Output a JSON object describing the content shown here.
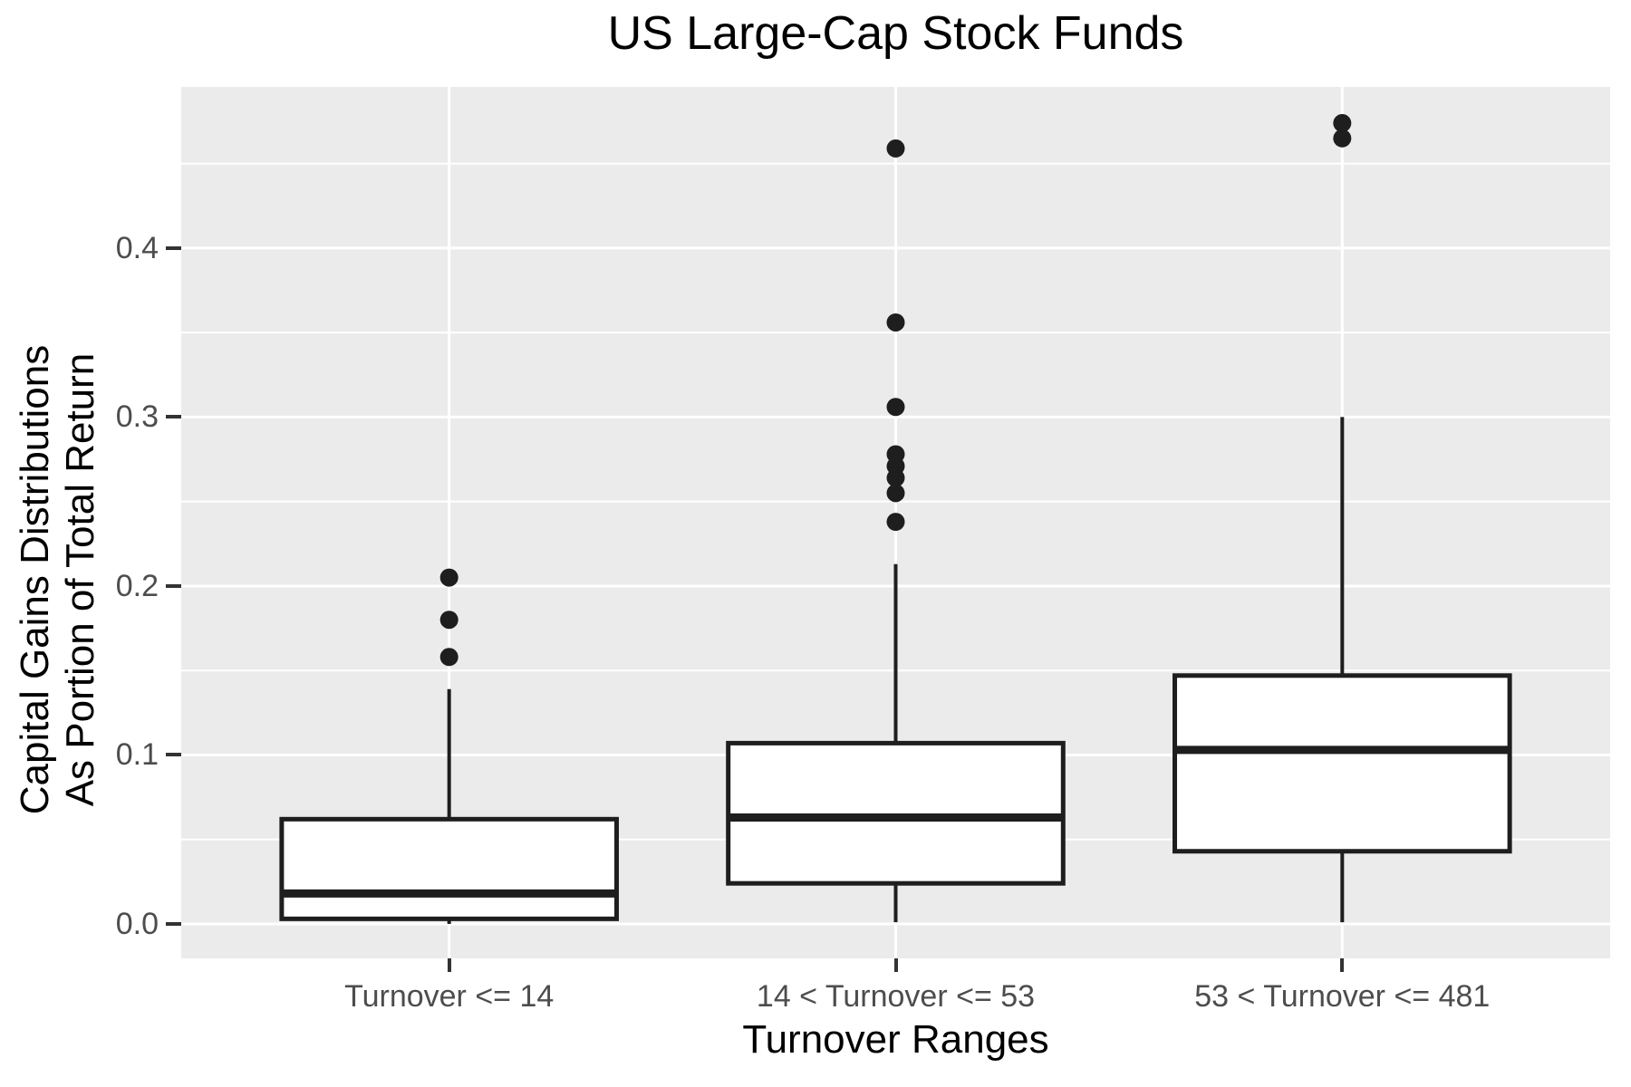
{
  "title": "US Large-Cap Stock Funds",
  "axes": {
    "x_title": "Turnover Ranges",
    "y_title_line1": "Capital Gains Distributions",
    "y_title_line2": "As Portion of Total Return",
    "y_ticks": [
      "0.0",
      "0.1",
      "0.2",
      "0.3",
      "0.4"
    ]
  },
  "chart_data": {
    "type": "boxplot",
    "title": "US Large-Cap Stock Funds",
    "xlabel": "Turnover Ranges",
    "ylabel": "Capital Gains Distributions\nAs Portion of Total Return",
    "categories": [
      "Turnover <= 14",
      "14 < Turnover <= 53",
      "53 < Turnover <= 481"
    ],
    "ylim": [
      -0.0204,
      0.4954
    ],
    "y_major_gridlines": [
      0.0,
      0.1,
      0.2,
      0.3,
      0.4
    ],
    "y_minor_gridlines": [
      0.05,
      0.15,
      0.25,
      0.35,
      0.45
    ],
    "grid": "on",
    "legend": "none",
    "series": [
      {
        "category": "Turnover <= 14",
        "whisker_low": 0.0,
        "q1": 0.003,
        "median": 0.018,
        "q3": 0.062,
        "whisker_high": 0.139,
        "outliers": [
          0.158,
          0.18,
          0.205
        ]
      },
      {
        "category": "14 < Turnover <= 53",
        "whisker_low": 0.001,
        "q1": 0.024,
        "median": 0.063,
        "q3": 0.107,
        "whisker_high": 0.213,
        "outliers": [
          0.238,
          0.255,
          0.264,
          0.271,
          0.278,
          0.306,
          0.356,
          0.459
        ]
      },
      {
        "category": "53 < Turnover <= 481",
        "whisker_low": 0.001,
        "q1": 0.043,
        "median": 0.103,
        "q3": 0.147,
        "whisker_high": 0.3,
        "outliers": [
          0.465,
          0.474
        ]
      }
    ],
    "colors": {
      "panel_bg": "#EBEBEB",
      "gridline": "#FFFFFF",
      "box_fill": "#FFFFFF",
      "box_stroke": "#1E1E1E",
      "outlier": "#1E1E1E",
      "axis_text": "#4D4D4D",
      "title_text": "#000000",
      "tick_mark": "#333333"
    }
  }
}
